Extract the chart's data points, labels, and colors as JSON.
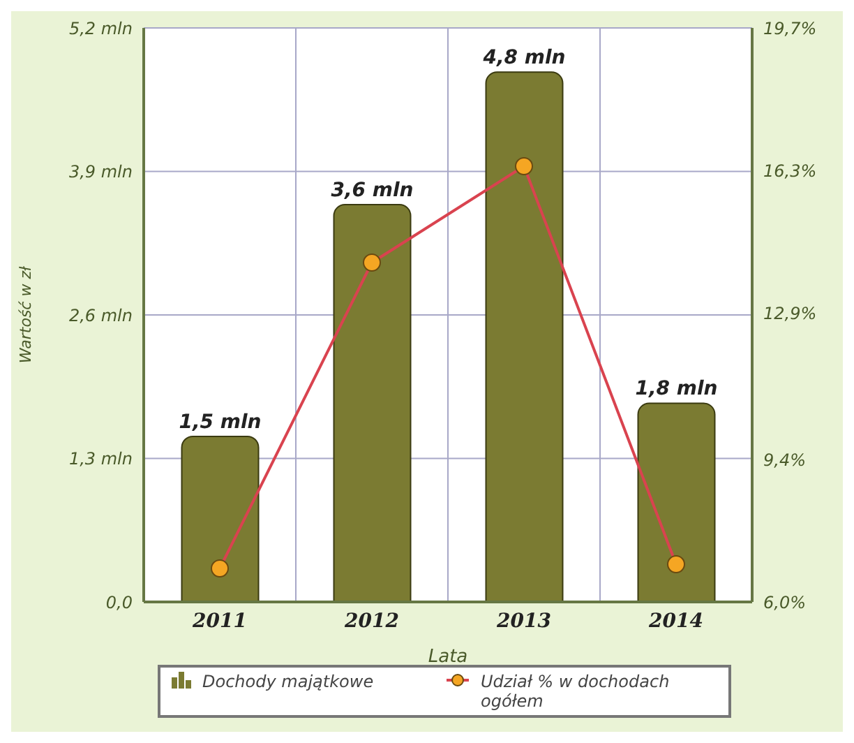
{
  "chart_data": {
    "type": "bar",
    "xlabel": "Lata",
    "ylabel": "Wartość w zł",
    "categories": [
      "2011",
      "2012",
      "2013",
      "2014"
    ],
    "series": [
      {
        "name": "Dochody majątkowe",
        "color": "#7b7b32",
        "values": [
          1.5,
          3.6,
          4.8,
          1.8
        ],
        "value_labels": [
          "1,5 mln",
          "3,6 mln",
          "4,8 mln",
          "1,8 mln"
        ]
      },
      {
        "name": "Udział % w dochodach ogółem",
        "type": "line",
        "axis": "y2",
        "color": "#d9434f",
        "values": [
          6.8,
          14.1,
          16.4,
          6.9
        ]
      }
    ],
    "ylim": [
      0,
      5.2
    ],
    "yticks": [
      {
        "value": 0,
        "label": "0,0"
      },
      {
        "value": 1.3,
        "label": "1,3 mln"
      },
      {
        "value": 2.6,
        "label": "2,6 mln"
      },
      {
        "value": 3.9,
        "label": "3,9 mln"
      },
      {
        "value": 5.2,
        "label": "5,2 mln"
      }
    ],
    "y2lim": [
      6,
      19.7
    ],
    "y2ticks": [
      {
        "value": 6,
        "label": "6,0%"
      },
      {
        "value": 9.4,
        "label": "9,4%"
      },
      {
        "value": 12.9,
        "label": "12,9%"
      },
      {
        "value": 16.3,
        "label": "16,3%"
      },
      {
        "value": 19.7,
        "label": "19,7%"
      }
    ],
    "grid": true,
    "legend": "bottom",
    "marker": "circle",
    "line_style": "solid"
  }
}
